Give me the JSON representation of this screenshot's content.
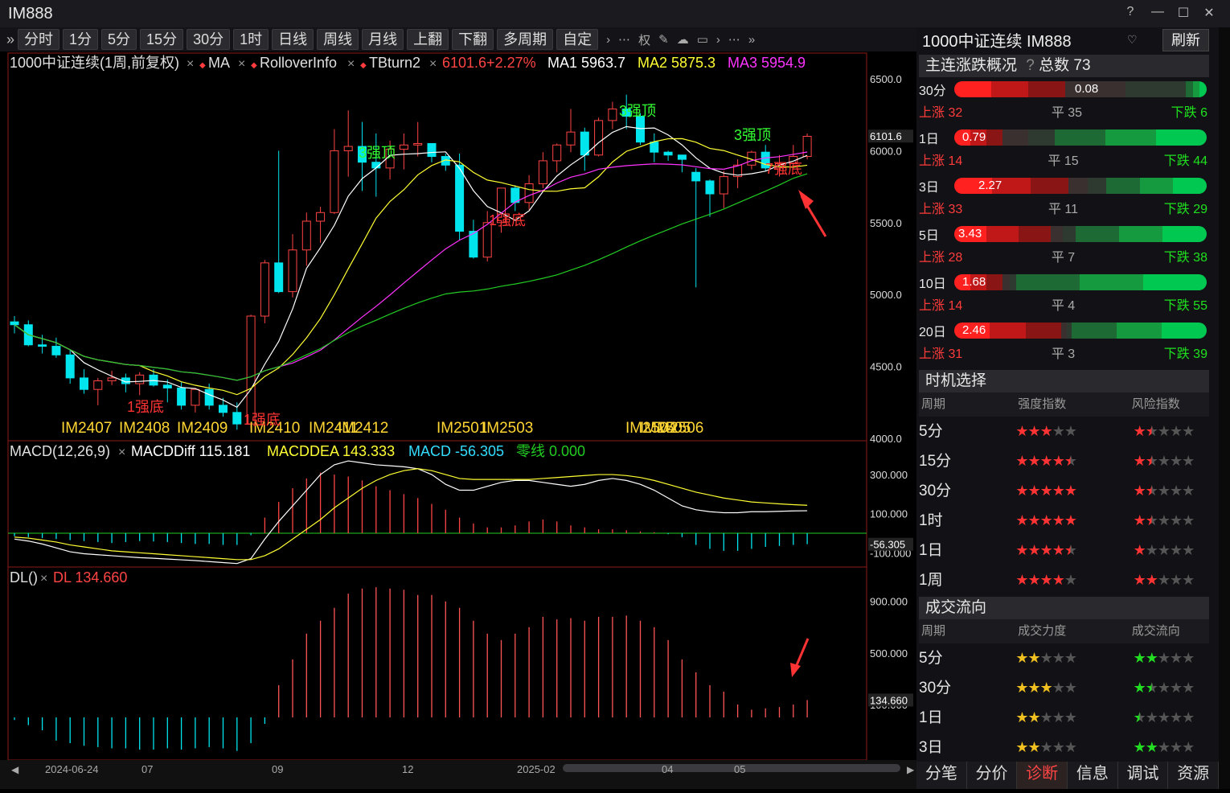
{
  "app": {
    "title": "IM888"
  },
  "toolbar": {
    "buttons": [
      "分时",
      "1分",
      "5分",
      "15分",
      "30分",
      "1时",
      "日线",
      "周线",
      "月线",
      "上翻",
      "下翻",
      "多周期",
      "自定"
    ],
    "prefix": "»"
  },
  "chart_header": {
    "name": "1000中证连续(1周,前复权)",
    "ind1": "MA",
    "ind2": "RolloverInfo",
    "ind3": "TBturn2",
    "price": "6101.6+2.27%",
    "ma1": "MA1 5963.7",
    "ma2": "MA2 5875.3",
    "ma3": "MA3 5954.9"
  },
  "macd_header": {
    "name": "MACD(12,26,9)",
    "diff": "MACDDiff 115.181",
    "dea": "MACDDEA 143.333",
    "macd": "MACD -56.305",
    "zero": "零线 0.000"
  },
  "dl_header": {
    "name": "DL()",
    "dl": "DL 134.660"
  },
  "axis": {
    "price_ticks": [
      "6500.0",
      "6000.0",
      "5500.0",
      "5000.0",
      "4500.0",
      "4000.0"
    ],
    "price_current": "6101.6",
    "macd_ticks": [
      "300.000",
      "100.000",
      "-100.000"
    ],
    "macd_current": "-56.305",
    "dl_ticks": [
      "900.000",
      "500.000",
      "100.000"
    ],
    "dl_current": "134.660",
    "x_labels": [
      "2024-06-24",
      "07",
      "09",
      "12",
      "2025-02",
      "04",
      "05"
    ]
  },
  "annotations": {
    "contracts": [
      "IM2407",
      "IM2408",
      "IM2409",
      "IM2410",
      "IM2411",
      "IM2412",
      "IM2501",
      "IM2503",
      "IM2504",
      "IM2505",
      "IM2506"
    ],
    "strong_bottom": "1强底",
    "strong_top": "3强顶",
    "strong_bottom7": "7强底"
  },
  "colors": {
    "up": "#ff4444",
    "down": "#00e5ee",
    "ma1": "#ffffff",
    "ma2": "#ffff33",
    "ma3": "#ff33ff",
    "ma4": "#22cc22"
  },
  "right_panel": {
    "title": "1000中证连续 IM888",
    "refresh": "刷新",
    "overview_title": "主连涨跌概况",
    "total": "总数 73",
    "periods": [
      {
        "label": "30分",
        "value": "0.08",
        "up": "上涨 32",
        "flat": "平 35",
        "down": "下跌 6"
      },
      {
        "label": "1日",
        "value": "0.79",
        "up": "上涨 14",
        "flat": "平 15",
        "down": "下跌 44"
      },
      {
        "label": "3日",
        "value": "2.27",
        "up": "上涨 33",
        "flat": "平 11",
        "down": "下跌 29"
      },
      {
        "label": "5日",
        "value": "3.43",
        "up": "上涨 28",
        "flat": "平 7",
        "down": "下跌 38"
      },
      {
        "label": "10日",
        "value": "1.68",
        "up": "上涨 14",
        "flat": "平 4",
        "down": "下跌 55"
      },
      {
        "label": "20日",
        "value": "2.46",
        "up": "上涨 31",
        "flat": "平 3",
        "down": "下跌 39"
      }
    ],
    "timing_title": "时机选择",
    "timing_headers": [
      "周期",
      "强度指数",
      "风险指数"
    ],
    "timing_rows": [
      {
        "period": "5分",
        "strength": 3,
        "risk": 1.5
      },
      {
        "period": "15分",
        "strength": 4.5,
        "risk": 1.5
      },
      {
        "period": "30分",
        "strength": 5,
        "risk": 1.5
      },
      {
        "period": "1时",
        "strength": 5,
        "risk": 1.5
      },
      {
        "period": "1日",
        "strength": 4.5,
        "risk": 1
      },
      {
        "period": "1周",
        "strength": 4,
        "risk": 2
      }
    ],
    "flow_title": "成交流向",
    "flow_headers": [
      "周期",
      "成交力度",
      "成交流向"
    ],
    "flow_rows": [
      {
        "period": "5分",
        "power": 2,
        "dir": 2
      },
      {
        "period": "30分",
        "power": 3,
        "dir": 1.5
      },
      {
        "period": "1日",
        "power": 2,
        "dir": 0.5
      },
      {
        "period": "3日",
        "power": 2,
        "dir": 2
      }
    ],
    "bottom_tabs": [
      "分笔",
      "分价",
      "诊断",
      "信息",
      "调试",
      "资源"
    ],
    "active_tab": "诊断"
  }
}
